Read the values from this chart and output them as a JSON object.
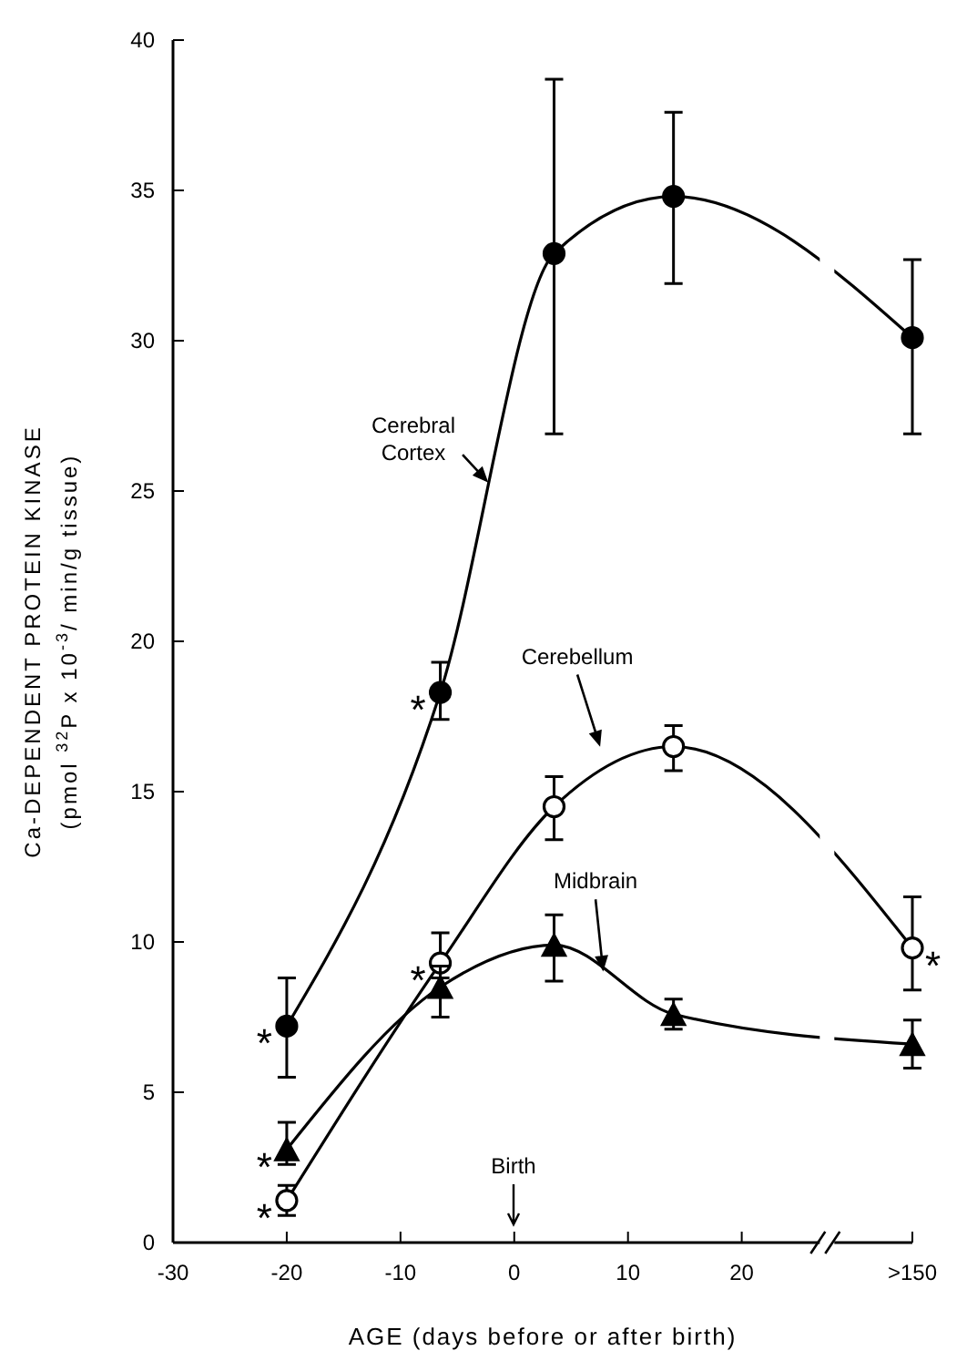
{
  "chart_data": {
    "type": "line",
    "xlabel": "AGE (days before or after birth)",
    "ylabel": "Ca-DEPENDENT PROTEIN KINASE (pmol $^{32}$P x 10$^{-3}$/ min/g tissue)",
    "xlim": [
      -30,
      35
    ],
    "xticks": [
      -30,
      -20,
      -10,
      0,
      10,
      20,
      {
        "value": 35,
        "label": ">150"
      }
    ],
    "ylim": [
      0,
      40
    ],
    "yticks": [
      0,
      5,
      10,
      15,
      20,
      25,
      30,
      35,
      40
    ],
    "grid": false,
    "legend": false,
    "line_style": "solid",
    "series": [
      {
        "name": "Cerebral Cortex",
        "color": "#000000",
        "marker": "circle",
        "x": [
          -20,
          -6.5,
          3.5,
          14,
          35
        ],
        "values": [
          7.2,
          18.3,
          32.9,
          34.8,
          30.1
        ],
        "errors": [
          [
            5.5,
            8.8
          ],
          [
            17.4,
            19.3
          ],
          [
            26.9,
            38.7
          ],
          [
            31.9,
            37.6
          ],
          [
            26.9,
            32.7
          ]
        ]
      },
      {
        "name": "Cerebellum",
        "color": "#000000",
        "marker": "circle",
        "x": [
          -20,
          -6.5,
          3.5,
          14,
          35
        ],
        "values": [
          1.4,
          9.3,
          14.5,
          16.5,
          9.8
        ],
        "errors": [
          [
            0.9,
            1.9
          ],
          [
            8.8,
            10.3
          ],
          [
            13.4,
            15.5
          ],
          [
            15.7,
            17.2
          ],
          [
            8.4,
            11.5
          ]
        ]
      },
      {
        "name": "Midbrain",
        "color": "#000000",
        "marker": "triangle",
        "x": [
          -20,
          -6.5,
          3.5,
          14,
          35
        ],
        "values": [
          3.1,
          8.5,
          9.9,
          7.6,
          6.6
        ],
        "errors": [
          [
            2.6,
            4.0
          ],
          [
            7.5,
            9.2
          ],
          [
            8.7,
            10.9
          ],
          [
            7.1,
            8.1
          ],
          [
            5.8,
            7.4
          ]
        ]
      }
    ],
    "annotations": [
      "Birth",
      {
        "text": "*",
        "x": -20,
        "y": 7.2
      },
      {
        "text": "*",
        "x": -6.5,
        "y": 18.3
      },
      {
        "text": "*",
        "x": -20,
        "y": 1.4
      },
      {
        "text": "*",
        "x": -6.5,
        "y": 9.3
      },
      {
        "text": "*",
        "x": 35,
        "y": 9.8
      },
      {
        "text": "*",
        "x": -20,
        "y": 3.1
      }
    ]
  }
}
